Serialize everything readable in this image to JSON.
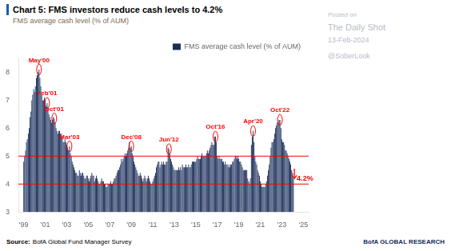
{
  "chart_data": {
    "type": "bar",
    "title": "Chart 5: FMS investors reduce cash levels to 4.2%",
    "title_marker_color": "#1a5fa8",
    "subtitle": "FMS average cash level (% of AUM)",
    "subtitle_color": "#7a6a5a",
    "x": [
      1999.0,
      1999.08,
      1999.17,
      1999.25,
      1999.33,
      1999.42,
      1999.5,
      1999.58,
      1999.67,
      1999.75,
      1999.83,
      1999.92,
      2000.0,
      2000.08,
      2000.17,
      2000.25,
      2000.33,
      2000.42,
      2000.5,
      2000.58,
      2000.67,
      2000.75,
      2000.83,
      2000.92,
      2001.0,
      2001.08,
      2001.17,
      2001.25,
      2001.33,
      2001.42,
      2001.5,
      2001.58,
      2001.67,
      2001.75,
      2001.83,
      2001.92,
      2002.0,
      2002.08,
      2002.17,
      2002.25,
      2002.33,
      2002.42,
      2002.5,
      2002.58,
      2002.67,
      2002.75,
      2002.83,
      2002.92,
      2003.0,
      2003.08,
      2003.17,
      2003.25,
      2003.33,
      2003.42,
      2003.5,
      2003.58,
      2003.67,
      2003.75,
      2003.83,
      2003.92,
      2004.0,
      2004.08,
      2004.17,
      2004.25,
      2004.33,
      2004.42,
      2004.5,
      2004.58,
      2004.67,
      2004.75,
      2004.83,
      2004.92,
      2005.0,
      2005.08,
      2005.17,
      2005.25,
      2005.33,
      2005.42,
      2005.5,
      2005.58,
      2005.67,
      2005.75,
      2005.83,
      2005.92,
      2006.0,
      2006.08,
      2006.17,
      2006.25,
      2006.33,
      2006.42,
      2006.5,
      2006.58,
      2006.67,
      2006.75,
      2006.83,
      2006.92,
      2007.0,
      2007.08,
      2007.17,
      2007.25,
      2007.33,
      2007.42,
      2007.5,
      2007.58,
      2007.67,
      2007.75,
      2007.83,
      2007.92,
      2008.0,
      2008.08,
      2008.17,
      2008.25,
      2008.33,
      2008.42,
      2008.5,
      2008.58,
      2008.67,
      2008.75,
      2008.83,
      2008.92,
      2009.0,
      2009.08,
      2009.17,
      2009.25,
      2009.33,
      2009.42,
      2009.5,
      2009.58,
      2009.67,
      2009.75,
      2009.83,
      2009.92,
      2010.0,
      2010.08,
      2010.17,
      2010.25,
      2010.33,
      2010.42,
      2010.5,
      2010.58,
      2010.67,
      2010.75,
      2010.83,
      2010.92,
      2011.0,
      2011.08,
      2011.17,
      2011.25,
      2011.33,
      2011.42,
      2011.5,
      2011.58,
      2011.67,
      2011.75,
      2011.83,
      2011.92,
      2012.0,
      2012.08,
      2012.17,
      2012.25,
      2012.33,
      2012.42,
      2012.5,
      2012.58,
      2012.67,
      2012.75,
      2012.83,
      2012.92,
      2013.0,
      2013.08,
      2013.17,
      2013.25,
      2013.33,
      2013.42,
      2013.5,
      2013.58,
      2013.67,
      2013.75,
      2013.83,
      2013.92,
      2014.0,
      2014.08,
      2014.17,
      2014.25,
      2014.33,
      2014.42,
      2014.5,
      2014.58,
      2014.67,
      2014.75,
      2014.83,
      2014.92,
      2015.0,
      2015.08,
      2015.17,
      2015.25,
      2015.33,
      2015.42,
      2015.5,
      2015.58,
      2015.67,
      2015.75,
      2015.83,
      2015.92,
      2016.0,
      2016.08,
      2016.17,
      2016.25,
      2016.33,
      2016.42,
      2016.5,
      2016.58,
      2016.67,
      2016.75,
      2016.83,
      2016.92,
      2017.0,
      2017.08,
      2017.17,
      2017.25,
      2017.33,
      2017.42,
      2017.5,
      2017.58,
      2017.67,
      2017.75,
      2017.83,
      2017.92,
      2018.0,
      2018.08,
      2018.17,
      2018.25,
      2018.33,
      2018.42,
      2018.5,
      2018.58,
      2018.67,
      2018.75,
      2018.83,
      2018.92,
      2019.0,
      2019.08,
      2019.17,
      2019.25,
      2019.33,
      2019.42,
      2019.5,
      2019.58,
      2019.67,
      2019.75,
      2019.83,
      2019.92,
      2020.0,
      2020.08,
      2020.17,
      2020.25,
      2020.33,
      2020.42,
      2020.5,
      2020.58,
      2020.67,
      2020.75,
      2020.83,
      2020.92,
      2021.0,
      2021.08,
      2021.17,
      2021.25,
      2021.33,
      2021.42,
      2021.5,
      2021.58,
      2021.67,
      2021.75,
      2021.83,
      2021.92,
      2022.0,
      2022.08,
      2022.17,
      2022.25,
      2022.33,
      2022.42,
      2022.5,
      2022.58,
      2022.67,
      2022.75,
      2022.83,
      2022.92,
      2023.0,
      2023.08,
      2023.17,
      2023.25,
      2023.33,
      2023.42,
      2023.5,
      2023.58,
      2023.67,
      2023.75,
      2023.83,
      2023.92,
      2024.0,
      2024.08
    ],
    "series": [
      {
        "name": "FMS average cash level (% of AUM)",
        "color": "#1a2e5a",
        "values": [
          4.8,
          5.0,
          5.2,
          5.5,
          5.6,
          5.8,
          6.0,
          6.4,
          6.6,
          7.0,
          7.2,
          7.4,
          7.3,
          7.5,
          7.8,
          7.9,
          8.0,
          8.1,
          7.8,
          7.5,
          7.2,
          7.0,
          7.0,
          7.1,
          7.0,
          6.8,
          6.9,
          6.7,
          6.5,
          6.4,
          6.3,
          6.2,
          6.3,
          6.4,
          6.35,
          6.2,
          6.0,
          5.9,
          5.8,
          5.9,
          5.9,
          5.8,
          5.8,
          5.7,
          5.5,
          5.5,
          5.6,
          5.5,
          5.4,
          5.3,
          5.2,
          5.35,
          5.1,
          5.0,
          4.8,
          4.7,
          4.6,
          4.5,
          4.4,
          4.4,
          4.3,
          4.3,
          4.5,
          4.4,
          4.3,
          4.4,
          4.4,
          4.3,
          4.2,
          4.2,
          4.3,
          4.3,
          4.2,
          4.1,
          4.2,
          4.3,
          4.4,
          4.3,
          4.3,
          4.1,
          4.2,
          4.3,
          4.2,
          4.1,
          4.0,
          4.0,
          4.1,
          4.2,
          4.1,
          4.1,
          4.0,
          4.0,
          3.9,
          3.9,
          4.0,
          4.0,
          4.0,
          4.1,
          4.0,
          4.0,
          4.1,
          4.2,
          4.2,
          4.3,
          4.4,
          4.5,
          4.5,
          4.6,
          4.7,
          4.9,
          4.8,
          4.9,
          5.0,
          5.1,
          5.0,
          5.1,
          5.2,
          5.3,
          5.5,
          5.3,
          5.35,
          5.1,
          5.0,
          4.8,
          4.7,
          4.6,
          4.5,
          4.4,
          4.3,
          4.3,
          4.4,
          4.3,
          4.2,
          4.1,
          4.2,
          4.3,
          4.2,
          4.1,
          4.2,
          4.3,
          4.2,
          4.1,
          4.0,
          4.0,
          4.1,
          4.2,
          4.3,
          4.4,
          4.6,
          4.7,
          4.8,
          4.8,
          4.6,
          4.7,
          4.8,
          4.7,
          4.8,
          4.7,
          4.7,
          4.8,
          4.8,
          5.3,
          5.25,
          5.1,
          4.9,
          4.8,
          4.7,
          4.6,
          4.5,
          4.5,
          4.5,
          4.5,
          4.5,
          4.6,
          4.5,
          4.6,
          4.5,
          4.7,
          4.6,
          4.6,
          4.6,
          4.7,
          4.6,
          4.6,
          4.7,
          4.6,
          4.6,
          4.7,
          4.8,
          4.8,
          4.8,
          4.8,
          4.8,
          4.9,
          5.0,
          4.9,
          4.9,
          4.9,
          5.0,
          5.1,
          5.0,
          5.0,
          5.0,
          5.0,
          5.1,
          5.2,
          5.1,
          5.2,
          5.3,
          5.4,
          5.5,
          5.4,
          5.4,
          5.7,
          5.7,
          5.5,
          5.0,
          4.9,
          5.0,
          4.9,
          4.9,
          4.9,
          4.8,
          4.8,
          4.7,
          4.8,
          4.7,
          4.7,
          4.6,
          4.7,
          4.6,
          4.7,
          4.7,
          4.8,
          4.8,
          4.9,
          5.0,
          5.0,
          4.9,
          5.0,
          4.9,
          4.8,
          4.8,
          4.7,
          4.6,
          4.5,
          4.5,
          4.5,
          4.5,
          4.5,
          4.2,
          4.1,
          4.0,
          4.2,
          5.4,
          5.7,
          5.9,
          5.5,
          5.0,
          4.8,
          4.7,
          4.5,
          4.4,
          4.3,
          4.1,
          4.0,
          3.9,
          3.9,
          3.9,
          3.9,
          4.0,
          4.1,
          4.3,
          4.5,
          4.7,
          5.0,
          5.3,
          5.5,
          5.5,
          5.6,
          5.8,
          6.0,
          6.1,
          6.2,
          6.2,
          6.3,
          6.3,
          6.0,
          5.6,
          5.5,
          5.5,
          5.4,
          5.2,
          5.2,
          5.1,
          5.0,
          4.9,
          4.8,
          4.7,
          4.5,
          4.4,
          4.2
        ]
      }
    ],
    "xlim": [
      1998.5,
      2025.5
    ],
    "xticks": [
      {
        "value": 1999,
        "label": "'99"
      },
      {
        "value": 2001,
        "label": "'01"
      },
      {
        "value": 2003,
        "label": "'03"
      },
      {
        "value": 2005,
        "label": "'05"
      },
      {
        "value": 2007,
        "label": "'07"
      },
      {
        "value": 2009,
        "label": "'09"
      },
      {
        "value": 2011,
        "label": "'11"
      },
      {
        "value": 2013,
        "label": "'13"
      },
      {
        "value": 2015,
        "label": "'15"
      },
      {
        "value": 2017,
        "label": "'17"
      },
      {
        "value": 2019,
        "label": "'19"
      },
      {
        "value": 2021,
        "label": "'21"
      },
      {
        "value": 2023,
        "label": "'23"
      },
      {
        "value": 2025,
        "label": "'25"
      }
    ],
    "ylim": [
      3.0,
      8.5
    ],
    "yticks": [
      3,
      4,
      5,
      6,
      7,
      8
    ],
    "grid": false,
    "legend": "upper right",
    "reference_lines": [
      {
        "y": 5.0,
        "color": "red"
      },
      {
        "y": 4.0,
        "color": "red"
      }
    ],
    "annotations": [
      {
        "text": "May'00",
        "x": 2000.42,
        "y": 8.1,
        "marker": "circle",
        "color": "red"
      },
      {
        "text": "Feb'01",
        "x": 2001.17,
        "y": 6.9,
        "marker": "circle",
        "color": "red"
      },
      {
        "text": "Oct'01",
        "x": 2001.83,
        "y": 6.35,
        "marker": "circle",
        "color": "red"
      },
      {
        "text": "Mar'03",
        "x": 2003.25,
        "y": 5.35,
        "marker": "circle",
        "color": "red"
      },
      {
        "text": "Dec'08",
        "x": 2009.0,
        "y": 5.35,
        "marker": "circle",
        "color": "red"
      },
      {
        "text": "Jun'12",
        "x": 2012.5,
        "y": 5.25,
        "marker": "circle",
        "color": "red"
      },
      {
        "text": "Oct'16",
        "x": 2016.83,
        "y": 5.7,
        "marker": "circle",
        "color": "red"
      },
      {
        "text": "Apr'20",
        "x": 2020.33,
        "y": 5.9,
        "marker": "circle",
        "color": "red"
      },
      {
        "text": "Oct'22",
        "x": 2022.83,
        "y": 6.3,
        "marker": "circle",
        "color": "red"
      },
      {
        "text": "4.2%",
        "x": 2024.17,
        "y": 4.2,
        "arrow_from": 4.55,
        "color": "red"
      }
    ],
    "side_texts": [
      "Posted on",
      "The Daily Shot",
      "13-Feb-2024",
      "@SoberLook"
    ],
    "side_color": "#b8bcc8",
    "source_label": "Source:",
    "source": "BofA Global Fund Manager Survey",
    "branding": "BofA GLOBAL RESEARCH",
    "branding_color": "#1a2e5a"
  }
}
